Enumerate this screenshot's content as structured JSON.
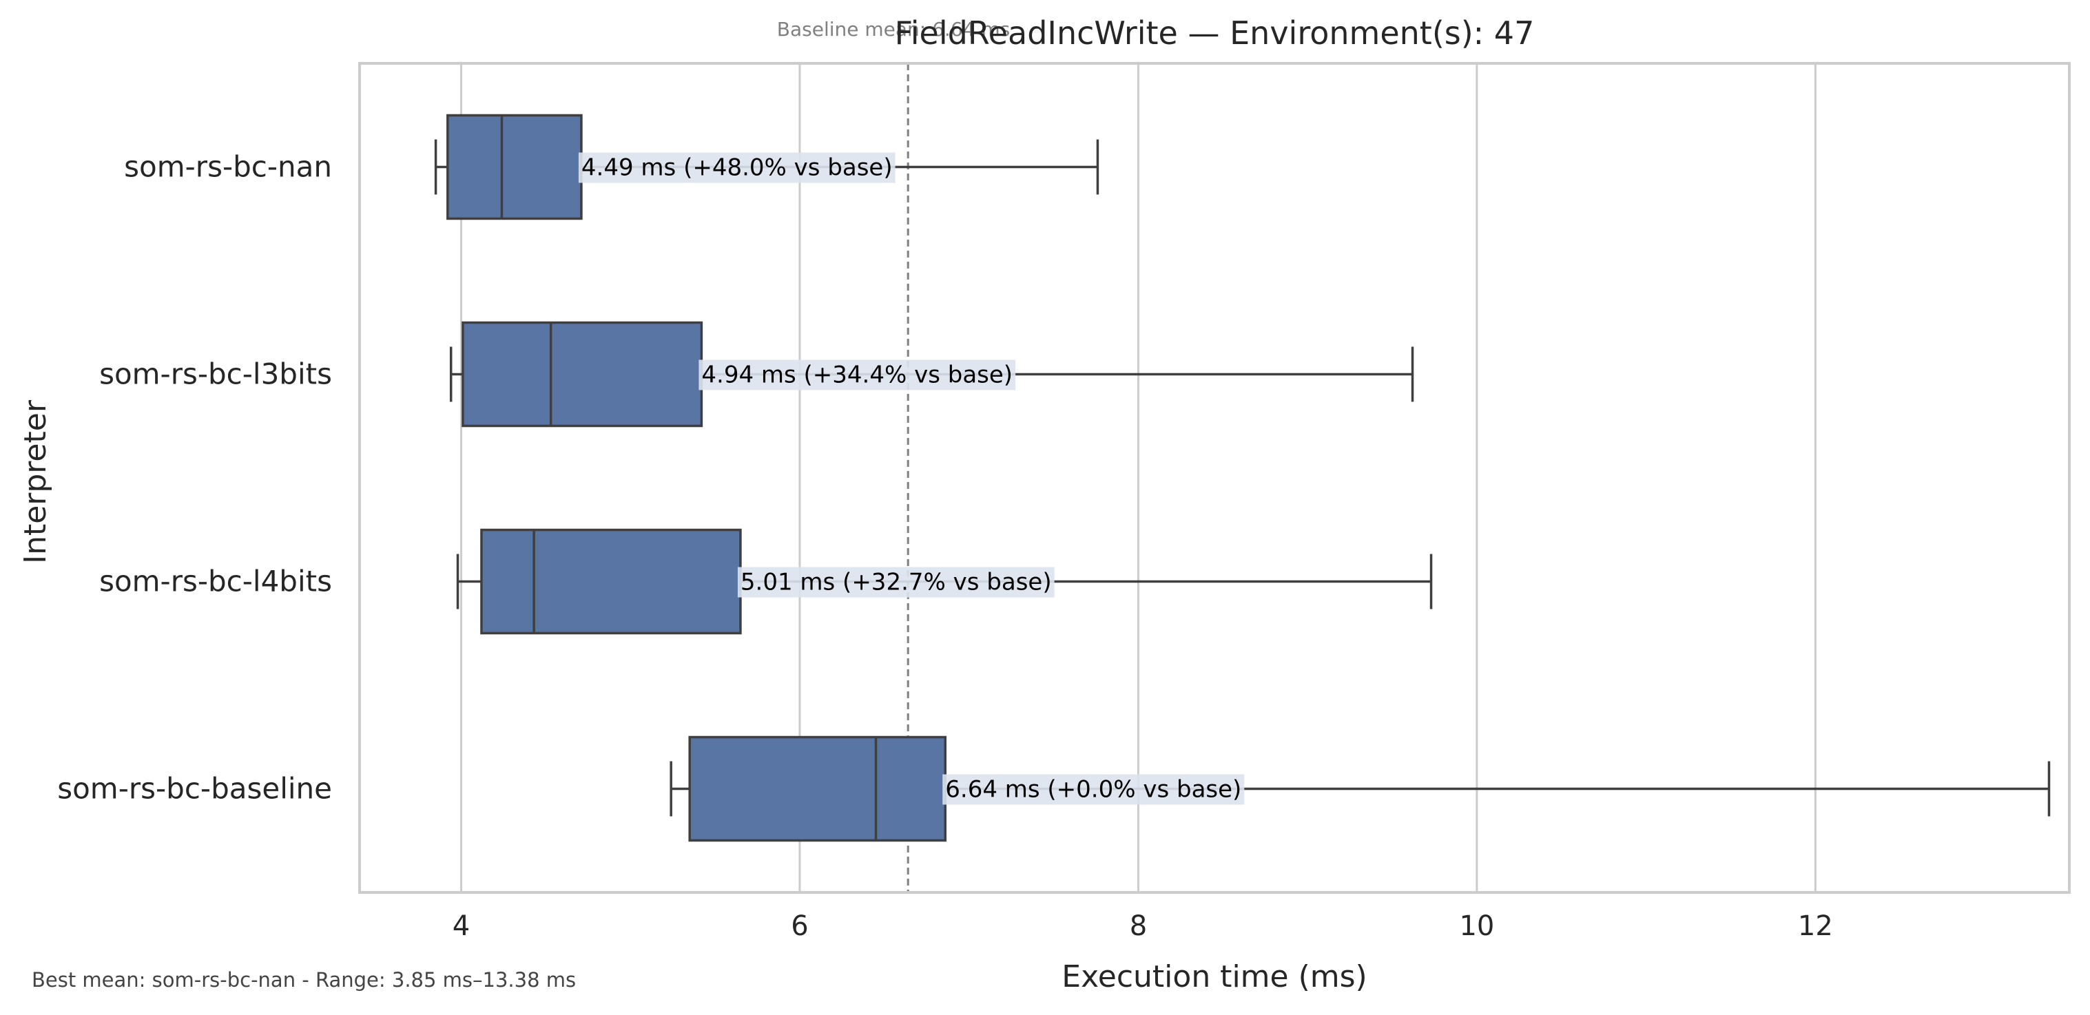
{
  "title": "FieldReadIncWrite — Environment(s): 47",
  "baseline_annotation": "Baseline mean: 6.64 ms",
  "footer_note": "Best mean: som-rs-bc-nan - Range: 3.85 ms–13.38 ms",
  "colors": {
    "box_fill": "#5975a4",
    "box_stroke": "#3f3f3f",
    "grid": "#cccccc",
    "frame": "#cccccc",
    "baseline_line": "#808080",
    "label_bg": "#dde3ee"
  },
  "chart_data": {
    "type": "box",
    "orientation": "horizontal",
    "title": "FieldReadIncWrite — Environment(s): 47",
    "xlabel": "Execution time (ms)",
    "ylabel": "Interpreter",
    "xlim": [
      3.4,
      13.5
    ],
    "xticks": [
      4,
      6,
      8,
      10,
      12
    ],
    "grid": "vertical",
    "baseline_mean": 6.64,
    "categories": [
      "som-rs-bc-nan",
      "som-rs-bc-l3bits",
      "som-rs-bc-l4bits",
      "som-rs-bc-baseline"
    ],
    "boxes": [
      {
        "name": "som-rs-bc-nan",
        "whisker_low": 3.85,
        "q1": 3.92,
        "median": 4.24,
        "q3": 4.71,
        "whisker_high": 7.76,
        "label": "4.49 ms  (+48.0% vs base)"
      },
      {
        "name": "som-rs-bc-l3bits",
        "whisker_low": 3.94,
        "q1": 4.01,
        "median": 4.53,
        "q3": 5.42,
        "whisker_high": 9.62,
        "label": "4.94 ms  (+34.4% vs base)"
      },
      {
        "name": "som-rs-bc-l4bits",
        "whisker_low": 3.98,
        "q1": 4.12,
        "median": 4.43,
        "q3": 5.65,
        "whisker_high": 9.73,
        "label": "5.01 ms  (+32.7% vs base)"
      },
      {
        "name": "som-rs-bc-baseline",
        "whisker_low": 5.24,
        "q1": 5.35,
        "median": 6.45,
        "q3": 6.86,
        "whisker_high": 13.38,
        "label": "6.64 ms  (+0.0% vs base)"
      }
    ]
  }
}
